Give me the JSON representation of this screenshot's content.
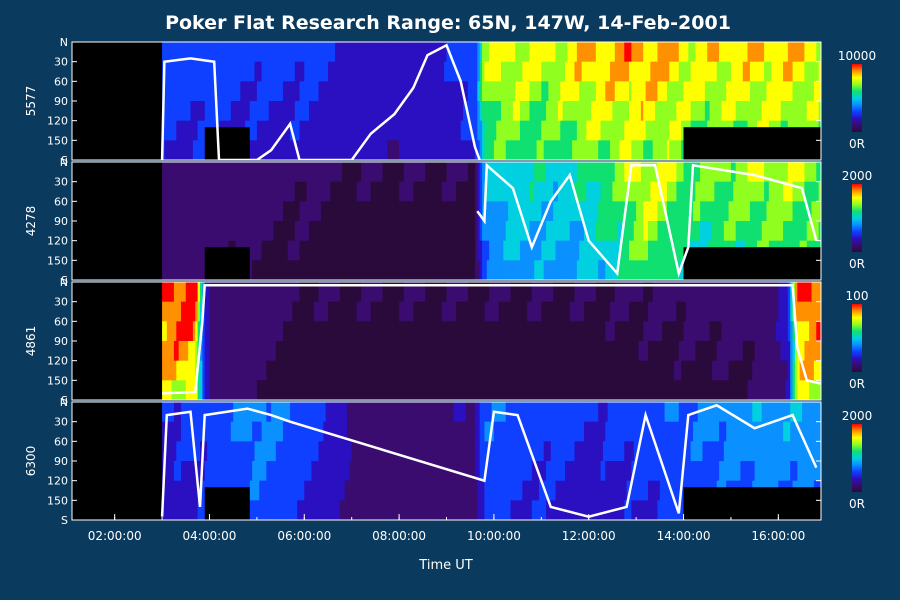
{
  "colors": {
    "background": "#0a3a5e",
    "axis": "#ffffff",
    "no_data": "#000000",
    "colormap": [
      "#2a0a3a",
      "#3a0c70",
      "#2a10c0",
      "#1040ff",
      "#0a90ff",
      "#00d0e0",
      "#10e070",
      "#90ff20",
      "#ffff00",
      "#ff9000",
      "#ff0000"
    ]
  },
  "chart_data": {
    "type": "heatmap",
    "title": "Poker Flat Research Range: 65N, 147W, 14-Feb-2001",
    "xlabel": "Time UT",
    "x_ticks": [
      "02:00:00",
      "04:00:00",
      "06:00:00",
      "08:00:00",
      "10:00:00",
      "12:00:00",
      "14:00:00",
      "16:00:00"
    ],
    "xlim_hours": [
      1.1,
      16.9
    ],
    "data_start_hour": 3.0,
    "y_ticks": [
      "N",
      "30",
      "60",
      "90",
      "120",
      "150",
      "S"
    ],
    "ylim_deg": [
      0,
      180
    ],
    "panels": [
      {
        "wavelength": "5577",
        "scale_max": "10000",
        "scale_min": "0R",
        "intensity_profile": [
          {
            "t": 3.0,
            "v": 0.3
          },
          {
            "t": 4.0,
            "v": 0.3
          },
          {
            "t": 5.0,
            "v": 0.28
          },
          {
            "t": 6.0,
            "v": 0.28
          },
          {
            "t": 7.0,
            "v": 0.22
          },
          {
            "t": 8.0,
            "v": 0.2
          },
          {
            "t": 9.0,
            "v": 0.25
          },
          {
            "t": 9.6,
            "v": 0.3
          },
          {
            "t": 9.8,
            "v": 0.75
          },
          {
            "t": 10.5,
            "v": 0.8
          },
          {
            "t": 11.0,
            "v": 0.75
          },
          {
            "t": 12.0,
            "v": 0.85
          },
          {
            "t": 13.0,
            "v": 0.9
          },
          {
            "t": 13.9,
            "v": 0.85
          },
          {
            "t": 14.1,
            "v": 0.8
          },
          {
            "t": 15.0,
            "v": 0.82
          },
          {
            "t": 16.0,
            "v": 0.85
          },
          {
            "t": 16.9,
            "v": 0.8
          }
        ],
        "contour": [
          {
            "t": 3.0,
            "deg": 180
          },
          {
            "t": 3.05,
            "deg": 30
          },
          {
            "t": 3.6,
            "deg": 25
          },
          {
            "t": 4.1,
            "deg": 30
          },
          {
            "t": 4.2,
            "deg": 180
          },
          {
            "t": 5.0,
            "deg": 180
          },
          {
            "t": 5.3,
            "deg": 165
          },
          {
            "t": 5.7,
            "deg": 125
          },
          {
            "t": 5.9,
            "deg": 180
          },
          {
            "t": 7.0,
            "deg": 180
          },
          {
            "t": 7.4,
            "deg": 140
          },
          {
            "t": 7.9,
            "deg": 110
          },
          {
            "t": 8.3,
            "deg": 70
          },
          {
            "t": 8.6,
            "deg": 20
          },
          {
            "t": 9.0,
            "deg": 5
          },
          {
            "t": 9.3,
            "deg": 60
          },
          {
            "t": 9.6,
            "deg": 160
          },
          {
            "t": 9.7,
            "deg": 180
          }
        ],
        "masks": [
          {
            "t0": 3.9,
            "t1": 4.85,
            "deg0": 130,
            "deg1": 180
          },
          {
            "t0": 14.0,
            "t1": 16.9,
            "deg0": 130,
            "deg1": 180
          }
        ]
      },
      {
        "wavelength": "4278",
        "scale_max": "2000",
        "scale_min": "0R",
        "intensity_profile": [
          {
            "t": 3.0,
            "v": 0.08
          },
          {
            "t": 5.0,
            "v": 0.06
          },
          {
            "t": 7.0,
            "v": 0.05
          },
          {
            "t": 9.6,
            "v": 0.05
          },
          {
            "t": 9.8,
            "v": 0.45
          },
          {
            "t": 10.5,
            "v": 0.55
          },
          {
            "t": 11.5,
            "v": 0.5
          },
          {
            "t": 12.5,
            "v": 0.65
          },
          {
            "t": 13.2,
            "v": 0.8
          },
          {
            "t": 13.9,
            "v": 0.7
          },
          {
            "t": 14.1,
            "v": 0.65
          },
          {
            "t": 15.0,
            "v": 0.7
          },
          {
            "t": 16.0,
            "v": 0.75
          },
          {
            "t": 16.9,
            "v": 0.7
          }
        ],
        "contour": [
          {
            "t": 9.65,
            "deg": 75
          },
          {
            "t": 9.8,
            "deg": 90
          },
          {
            "t": 9.85,
            "deg": 5
          },
          {
            "t": 10.4,
            "deg": 40
          },
          {
            "t": 10.8,
            "deg": 130
          },
          {
            "t": 11.2,
            "deg": 60
          },
          {
            "t": 11.6,
            "deg": 20
          },
          {
            "t": 12.0,
            "deg": 120
          },
          {
            "t": 12.6,
            "deg": 170
          },
          {
            "t": 12.9,
            "deg": 5
          },
          {
            "t": 13.4,
            "deg": 5
          },
          {
            "t": 13.9,
            "deg": 170
          },
          {
            "t": 14.1,
            "deg": 130
          },
          {
            "t": 14.2,
            "deg": 5
          },
          {
            "t": 15.5,
            "deg": 20
          },
          {
            "t": 16.5,
            "deg": 40
          },
          {
            "t": 16.8,
            "deg": 120
          }
        ],
        "masks": [
          {
            "t0": 3.9,
            "t1": 4.85,
            "deg0": 130,
            "deg1": 180
          },
          {
            "t0": 14.0,
            "t1": 16.9,
            "deg0": 130,
            "deg1": 180
          }
        ]
      },
      {
        "wavelength": "4861",
        "scale_max": "100",
        "scale_min": "0R",
        "intensity_profile": [
          {
            "t": 3.0,
            "v": 1.0
          },
          {
            "t": 3.7,
            "v": 1.0
          },
          {
            "t": 3.9,
            "v": 0.25
          },
          {
            "t": 4.1,
            "v": 0.08
          },
          {
            "t": 6.0,
            "v": 0.05
          },
          {
            "t": 9.0,
            "v": 0.05
          },
          {
            "t": 12.0,
            "v": 0.05
          },
          {
            "t": 15.5,
            "v": 0.06
          },
          {
            "t": 16.2,
            "v": 0.2
          },
          {
            "t": 16.4,
            "v": 0.95
          },
          {
            "t": 16.9,
            "v": 1.0
          }
        ],
        "contour": [
          {
            "t": 3.0,
            "deg": 170
          },
          {
            "t": 3.7,
            "deg": 168
          },
          {
            "t": 3.85,
            "deg": 60
          },
          {
            "t": 3.9,
            "deg": 5
          },
          {
            "t": 16.3,
            "deg": 5
          },
          {
            "t": 16.4,
            "deg": 100
          },
          {
            "t": 16.6,
            "deg": 150
          },
          {
            "t": 16.9,
            "deg": 155
          }
        ],
        "masks": []
      },
      {
        "wavelength": "6300",
        "scale_max": "2000",
        "scale_min": "0R",
        "intensity_profile": [
          {
            "t": 3.0,
            "v": 0.25
          },
          {
            "t": 4.0,
            "v": 0.3
          },
          {
            "t": 5.0,
            "v": 0.4
          },
          {
            "t": 6.0,
            "v": 0.3
          },
          {
            "t": 7.0,
            "v": 0.15
          },
          {
            "t": 8.0,
            "v": 0.12
          },
          {
            "t": 9.6,
            "v": 0.15
          },
          {
            "t": 9.8,
            "v": 0.35
          },
          {
            "t": 11.0,
            "v": 0.3
          },
          {
            "t": 12.0,
            "v": 0.25
          },
          {
            "t": 13.0,
            "v": 0.3
          },
          {
            "t": 14.0,
            "v": 0.35
          },
          {
            "t": 15.0,
            "v": 0.4
          },
          {
            "t": 16.0,
            "v": 0.45
          },
          {
            "t": 16.9,
            "v": 0.4
          }
        ],
        "contour": [
          {
            "t": 3.0,
            "deg": 175
          },
          {
            "t": 3.1,
            "deg": 20
          },
          {
            "t": 3.6,
            "deg": 15
          },
          {
            "t": 3.8,
            "deg": 160
          },
          {
            "t": 3.9,
            "deg": 20
          },
          {
            "t": 4.8,
            "deg": 10
          },
          {
            "t": 5.3,
            "deg": 20
          },
          {
            "t": 5.7,
            "deg": 30
          },
          {
            "t": 9.8,
            "deg": 120
          },
          {
            "t": 10.0,
            "deg": 15
          },
          {
            "t": 10.5,
            "deg": 20
          },
          {
            "t": 11.2,
            "deg": 160
          },
          {
            "t": 12.0,
            "deg": 175
          },
          {
            "t": 12.8,
            "deg": 160
          },
          {
            "t": 13.2,
            "deg": 20
          },
          {
            "t": 13.9,
            "deg": 170
          },
          {
            "t": 14.1,
            "deg": 20
          },
          {
            "t": 14.7,
            "deg": 5
          },
          {
            "t": 15.5,
            "deg": 40
          },
          {
            "t": 16.3,
            "deg": 20
          },
          {
            "t": 16.8,
            "deg": 100
          }
        ],
        "masks": [
          {
            "t0": 3.9,
            "t1": 4.85,
            "deg0": 130,
            "deg1": 180
          },
          {
            "t0": 14.0,
            "t1": 16.9,
            "deg0": 130,
            "deg1": 180
          }
        ]
      }
    ]
  }
}
